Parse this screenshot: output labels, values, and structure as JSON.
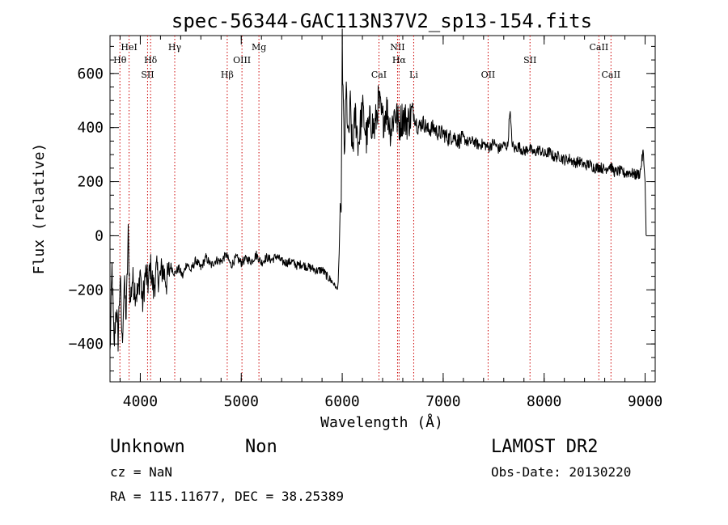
{
  "chart_data": {
    "type": "line",
    "title": "spec-56344-GAC113N37V2_sp13-154.fits",
    "xlabel": "Wavelength (Å)",
    "ylabel": "Flux (relative)",
    "xlim": [
      3700,
      9100
    ],
    "ylim": [
      -540,
      740
    ],
    "x_ticks": [
      4000,
      5000,
      6000,
      7000,
      8000,
      9000
    ],
    "y_ticks": [
      -400,
      -200,
      0,
      200,
      400,
      600
    ],
    "grid": false,
    "line_color": "#000000",
    "marker_color": "#cc0000",
    "series": [
      {
        "x": [
          3700,
          3720,
          3740,
          3760,
          3780,
          3800,
          3820,
          3840,
          3860,
          3880,
          3900,
          3920,
          3950,
          3980,
          4000,
          4020,
          4050,
          4080,
          4100,
          4130,
          4160,
          4190,
          4220,
          4260,
          4300,
          4340,
          4380,
          4420,
          4460,
          4500,
          4550,
          4600,
          4650,
          4700,
          4750,
          4800,
          4850,
          4900,
          4950,
          5000,
          5050,
          5100,
          5150,
          5200,
          5250,
          5300,
          5350,
          5400,
          5450,
          5500,
          5550,
          5600,
          5650,
          5700,
          5750,
          5800,
          5850,
          5900,
          5930,
          5950,
          5960,
          5970,
          5980,
          5990,
          6000,
          6020,
          6040,
          6060,
          6080,
          6100,
          6130,
          6160,
          6200,
          6240,
          6280,
          6320,
          6360,
          6400,
          6440,
          6480,
          6520,
          6560,
          6600,
          6650,
          6700,
          6750,
          6800,
          6850,
          6900,
          6950,
          7000,
          7050,
          7100,
          7150,
          7200,
          7250,
          7300,
          7350,
          7400,
          7450,
          7500,
          7550,
          7600,
          7640,
          7660,
          7680,
          7700,
          7750,
          7800,
          7850,
          7900,
          7950,
          8000,
          8050,
          8100,
          8150,
          8200,
          8250,
          8300,
          8350,
          8400,
          8450,
          8500,
          8550,
          8600,
          8650,
          8700,
          8750,
          8800,
          8850,
          8900,
          8950,
          8980,
          9000,
          9010
        ],
        "y": [
          -440,
          -120,
          -420,
          -260,
          -380,
          -150,
          -400,
          -180,
          -300,
          0,
          -250,
          -160,
          -200,
          -220,
          -120,
          -260,
          -140,
          -180,
          -110,
          -200,
          -130,
          -160,
          -120,
          -170,
          -110,
          -140,
          -120,
          -150,
          -100,
          -130,
          -90,
          -120,
          -80,
          -110,
          -90,
          -95,
          -70,
          -110,
          -80,
          -100,
          -85,
          -95,
          -70,
          -100,
          -80,
          -90,
          -75,
          -95,
          -100,
          -95,
          -110,
          -105,
          -115,
          -120,
          -130,
          -125,
          -150,
          -170,
          -185,
          -200,
          -170,
          -70,
          120,
          80,
          700,
          280,
          540,
          340,
          480,
          310,
          450,
          340,
          470,
          360,
          430,
          390,
          500,
          420,
          470,
          390,
          460,
          410,
          440,
          420,
          460,
          400,
          420,
          390,
          400,
          380,
          380,
          360,
          370,
          350,
          360,
          345,
          350,
          335,
          340,
          325,
          345,
          320,
          335,
          330,
          470,
          350,
          320,
          330,
          310,
          325,
          305,
          320,
          300,
          310,
          290,
          295,
          280,
          285,
          270,
          275,
          260,
          265,
          250,
          255,
          245,
          260,
          235,
          240,
          230,
          235,
          225,
          230,
          310,
          200,
          0
        ]
      }
    ],
    "lines": [
      {
        "label": "Hθ",
        "x": 3798,
        "row": 2
      },
      {
        "label": "HeI",
        "x": 3889,
        "row": 1
      },
      {
        "label": "Hδ",
        "x": 4102,
        "row": 2
      },
      {
        "label": "SII",
        "x": 4072,
        "row": 3
      },
      {
        "label": "Hγ",
        "x": 4341,
        "row": 1
      },
      {
        "label": "Hβ",
        "x": 4861,
        "row": 3
      },
      {
        "label": "OIII",
        "x": 5007,
        "row": 2
      },
      {
        "label": "Mg",
        "x": 5175,
        "row": 1
      },
      {
        "label": "CaI",
        "x": 6364,
        "row": 3
      },
      {
        "label": "NII",
        "x": 6548,
        "row": 1
      },
      {
        "label": "Hα",
        "x": 6563,
        "row": 2
      },
      {
        "label": "Li",
        "x": 6708,
        "row": 3
      },
      {
        "label": "OII",
        "x": 7445,
        "row": 3
      },
      {
        "label": "SII",
        "x": 7860,
        "row": 2
      },
      {
        "label": "CaII",
        "x": 8542,
        "row": 1
      },
      {
        "label": "CaII",
        "x": 8662,
        "row": 3
      }
    ]
  },
  "info": {
    "class": "Unknown",
    "subclass": "Non",
    "cz": "cz = NaN",
    "radec": "RA = 115.11677, DEC =  38.25389",
    "survey": "LAMOST DR2",
    "obsdate": "Obs-Date: 20130220"
  }
}
